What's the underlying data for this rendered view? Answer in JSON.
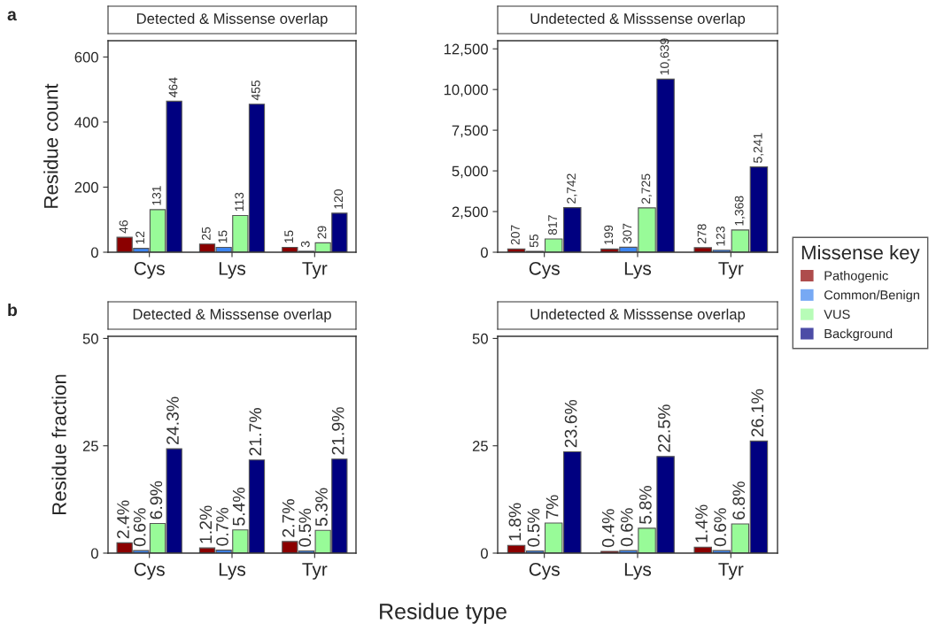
{
  "chart_data": [
    {
      "type": "bar",
      "title": "Detected & Missense overlap",
      "ylabel": "Residue count",
      "annotations": [
        "a"
      ],
      "categories": [
        "Cys",
        "Lys",
        "Tyr"
      ],
      "ylim": [
        0,
        650
      ],
      "yticks": [
        0,
        200,
        400,
        600
      ],
      "grid": false,
      "series": [
        {
          "color": "#8b0000",
          "values": [
            46,
            25,
            15
          ],
          "value_labels": [
            "46",
            "25",
            "15"
          ]
        },
        {
          "color": "#3d85f0",
          "values": [
            12,
            15,
            3
          ],
          "value_labels": [
            "12",
            "15",
            "3"
          ]
        },
        {
          "color": "#98fb98",
          "values": [
            131,
            113,
            29
          ],
          "value_labels": [
            "131",
            "113",
            "29"
          ]
        },
        {
          "color": "#000080",
          "values": [
            464,
            455,
            120
          ],
          "value_labels": [
            "464",
            "455",
            "120"
          ]
        }
      ]
    },
    {
      "type": "bar",
      "title": "Undetected & Misssense overlap",
      "legend_title": "Missense key",
      "categories": [
        "Cys",
        "Lys",
        "Tyr"
      ],
      "ylim": [
        0,
        13000
      ],
      "yticks": [
        0,
        {
          "value": 2500,
          "label": "2,500"
        },
        {
          "value": 5000,
          "label": "5,000"
        },
        {
          "value": 7500,
          "label": "7,500"
        },
        {
          "value": 10000,
          "label": "10,000"
        },
        {
          "value": 12500,
          "label": "12,500"
        }
      ],
      "grid": false,
      "legend": "right",
      "series": [
        {
          "name": "Pathogenic",
          "color": "#8b0000",
          "values": [
            207,
            199,
            278
          ],
          "value_labels": [
            "207",
            "199",
            "278"
          ]
        },
        {
          "name": "Common/Benign",
          "color": "#3d85f0",
          "values": [
            55,
            307,
            123
          ],
          "value_labels": [
            "55",
            "307",
            "123"
          ]
        },
        {
          "name": "VUS",
          "color": "#98fb98",
          "values": [
            817,
            2725,
            1368
          ],
          "value_labels": [
            "817",
            "2,725",
            "1,368"
          ]
        },
        {
          "name": "Background",
          "color": "#000080",
          "values": [
            2742,
            10639,
            5241
          ],
          "value_labels": [
            "2,742",
            "10,639",
            "5,241"
          ]
        }
      ]
    },
    {
      "type": "bar",
      "title": "Detected & Misssense overlap",
      "ylabel": "Residue fraction",
      "xlabel": "Residue type",
      "annotations": [
        "b"
      ],
      "categories": [
        "Cys",
        "Lys",
        "Tyr"
      ],
      "ylim": [
        0,
        50.5
      ],
      "yticks": [
        0,
        25,
        50
      ],
      "grid": false,
      "series": [
        {
          "color": "#8b0000",
          "values": [
            2.4,
            1.2,
            2.7
          ],
          "value_labels": [
            "2.4%",
            "1.2%",
            "2.7%"
          ]
        },
        {
          "color": "#3d85f0",
          "values": [
            0.6,
            0.7,
            0.5
          ],
          "value_labels": [
            "0.6%",
            "0.7%",
            "0.5%"
          ]
        },
        {
          "color": "#98fb98",
          "values": [
            6.9,
            5.4,
            5.3
          ],
          "value_labels": [
            "6.9%",
            "5.4%",
            "5.3%"
          ]
        },
        {
          "color": "#000080",
          "values": [
            24.3,
            21.7,
            21.9
          ],
          "value_labels": [
            "24.3%",
            "21.7%",
            "21.9%"
          ]
        }
      ]
    },
    {
      "type": "bar",
      "title": "Undetected & Misssense overlap",
      "categories": [
        "Cys",
        "Lys",
        "Tyr"
      ],
      "ylim": [
        0,
        50.5
      ],
      "yticks": [
        0,
        25,
        50
      ],
      "grid": false,
      "series": [
        {
          "color": "#8b0000",
          "values": [
            1.8,
            0.4,
            1.4
          ],
          "value_labels": [
            "1.8%",
            "0.4%",
            "1.4%"
          ]
        },
        {
          "color": "#3d85f0",
          "values": [
            0.5,
            0.6,
            0.6
          ],
          "value_labels": [
            "0.5%",
            "0.6%",
            "0.6%"
          ]
        },
        {
          "color": "#98fb98",
          "values": [
            7,
            5.8,
            6.8
          ],
          "value_labels": [
            "7%",
            "5.8%",
            "6.8%"
          ]
        },
        {
          "color": "#000080",
          "values": [
            23.6,
            22.5,
            26.1
          ],
          "value_labels": [
            "23.6%",
            "22.5%",
            "26.1%"
          ]
        }
      ]
    }
  ]
}
